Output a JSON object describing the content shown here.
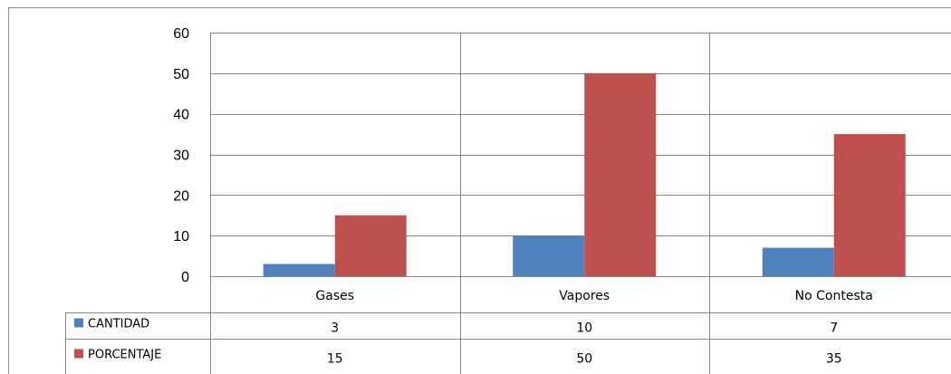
{
  "chart_data": {
    "type": "bar",
    "categories": [
      "Gases",
      "Vapores",
      "No Contesta"
    ],
    "series": [
      {
        "name": "CANTIDAD",
        "values": [
          3,
          10,
          7
        ],
        "color": "#4F81BD"
      },
      {
        "name": "PORCENTAJE",
        "values": [
          15,
          50,
          35
        ],
        "color": "#C0504D"
      }
    ],
    "ylim": [
      0,
      60
    ],
    "yticks": [
      0,
      10,
      20,
      30,
      40,
      50,
      60
    ],
    "grid": true,
    "legend": "data-table-left",
    "data_table": true
  }
}
